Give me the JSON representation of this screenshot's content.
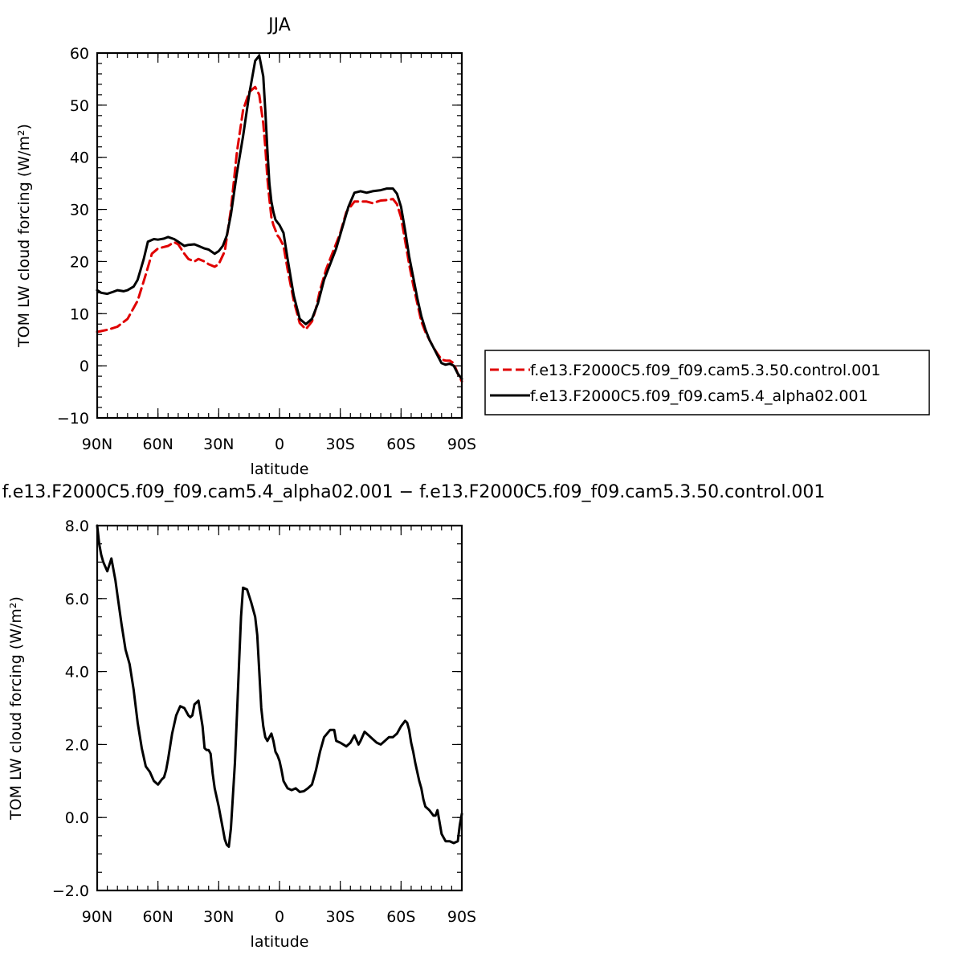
{
  "chart_data": [
    {
      "type": "line",
      "title": "JJA",
      "xlabel": "latitude",
      "ylabel": "TOM LW cloud forcing (W/m²)",
      "xlim": [
        90,
        -90
      ],
      "ylim": [
        -10,
        60
      ],
      "x_tick_values": [
        90,
        60,
        30,
        0,
        -30,
        -60,
        -90
      ],
      "x_tick_labels": [
        "90N",
        "60N",
        "30N",
        "0",
        "30S",
        "60S",
        "90S"
      ],
      "y_tick_values": [
        -10,
        0,
        10,
        20,
        30,
        40,
        50,
        60
      ],
      "y_tick_labels": [
        "−10",
        "0",
        "10",
        "20",
        "30",
        "40",
        "50",
        "60"
      ],
      "legend_position": "right",
      "series": [
        {
          "name": "f.e13.F2000C5.f09_f09.cam5.3.50.control.001",
          "color": "#e00000",
          "dash": "dashed",
          "x": [
            90,
            85,
            80,
            75,
            70,
            66,
            63,
            60,
            55,
            52,
            50,
            47,
            45,
            42,
            40,
            37,
            35,
            32,
            30,
            27,
            24,
            21,
            18,
            15,
            12,
            10,
            8,
            7,
            6,
            5,
            4,
            3,
            2,
            1,
            0,
            -2,
            -4,
            -7,
            -10,
            -13,
            -16,
            -18,
            -20,
            -23,
            -26,
            -30,
            -33,
            -37,
            -40,
            -43,
            -46,
            -50,
            -53,
            -56,
            -58,
            -60,
            -62,
            -64,
            -66,
            -68,
            -70,
            -72,
            -74,
            -76,
            -78,
            -80,
            -82,
            -84,
            -86,
            -88,
            -90
          ],
          "values": [
            6.5,
            6.9,
            7.5,
            9.0,
            12.5,
            17.5,
            21.5,
            22.5,
            23.0,
            23.7,
            23.3,
            21.5,
            20.5,
            20.0,
            20.5,
            20.0,
            19.5,
            19.0,
            19.5,
            22.0,
            30.0,
            41.0,
            49.0,
            52.5,
            53.5,
            52.0,
            46.5,
            42.0,
            36.0,
            32.0,
            28.5,
            27.0,
            26.0,
            25.0,
            24.5,
            23.0,
            18.5,
            12.5,
            8.2,
            7.0,
            8.5,
            11.0,
            14.5,
            18.5,
            21.5,
            25.5,
            29.5,
            31.5,
            31.5,
            31.5,
            31.2,
            31.7,
            31.8,
            32.0,
            31.0,
            28.5,
            24.0,
            19.5,
            15.5,
            12.0,
            8.5,
            6.5,
            5.0,
            3.5,
            2.3,
            1.2,
            1.0,
            1.0,
            0.5,
            -1.5,
            -3.0
          ]
        },
        {
          "name": "f.e13.F2000C5.f09_f09.cam5.4_alpha02.001",
          "color": "#000000",
          "dash": "solid",
          "x": [
            90,
            88,
            85,
            82,
            80,
            77,
            75,
            72,
            70,
            67,
            65,
            62,
            60,
            57,
            55,
            52,
            50,
            47,
            45,
            42,
            40,
            37,
            35,
            32,
            30,
            28,
            26,
            24,
            21,
            18,
            15,
            12,
            10,
            8,
            7,
            6,
            5,
            4,
            3,
            2,
            1,
            0,
            -2,
            -4,
            -7,
            -10,
            -13,
            -16,
            -19,
            -22,
            -25,
            -28,
            -31,
            -34,
            -37,
            -40,
            -43,
            -46,
            -50,
            -53,
            -56,
            -58,
            -60,
            -62,
            -64,
            -66,
            -68,
            -70,
            -72,
            -74,
            -76,
            -78,
            -80,
            -82,
            -84,
            -86,
            -88,
            -90
          ],
          "values": [
            14.5,
            14.0,
            13.8,
            14.2,
            14.5,
            14.3,
            14.5,
            15.2,
            16.5,
            20.5,
            23.8,
            24.3,
            24.2,
            24.4,
            24.7,
            24.3,
            23.8,
            23.0,
            23.2,
            23.3,
            23.0,
            22.5,
            22.3,
            21.5,
            22.0,
            23.0,
            25.0,
            29.0,
            37.0,
            44.0,
            52.0,
            58.5,
            59.5,
            55.5,
            49.0,
            41.5,
            35.0,
            31.5,
            29.5,
            28.0,
            27.5,
            27.0,
            25.5,
            20.5,
            13.5,
            9.0,
            8.0,
            9.0,
            12.0,
            16.5,
            19.5,
            22.5,
            26.5,
            30.5,
            33.2,
            33.5,
            33.2,
            33.5,
            33.7,
            34.0,
            34.0,
            33.0,
            30.5,
            26.0,
            21.0,
            17.0,
            13.0,
            9.5,
            7.0,
            5.0,
            3.5,
            2.0,
            0.5,
            0.2,
            0.4,
            0.0,
            -1.5,
            -2.5
          ]
        }
      ]
    },
    {
      "type": "line",
      "title": "f.e13.F2000C5.f09_f09.cam5.4_alpha02.001 − f.e13.F2000C5.f09_f09.cam5.3.50.control.001",
      "xlabel": "latitude",
      "ylabel": "TOM LW cloud forcing (W/m²)",
      "xlim": [
        90,
        -90
      ],
      "ylim": [
        -2.0,
        8.0
      ],
      "x_tick_values": [
        90,
        60,
        30,
        0,
        -30,
        -60,
        -90
      ],
      "x_tick_labels": [
        "90N",
        "60N",
        "30N",
        "0",
        "30S",
        "60S",
        "90S"
      ],
      "y_tick_values": [
        -2,
        0,
        2,
        4,
        6,
        8
      ],
      "y_tick_labels": [
        "−2.0",
        "0.0",
        "2.0",
        "4.0",
        "6.0",
        "8.0"
      ],
      "series": [
        {
          "color": "#000000",
          "dash": "solid",
          "x": [
            90,
            89,
            88,
            87,
            85,
            83,
            81,
            80,
            78,
            76,
            74,
            72,
            70,
            68,
            66,
            64,
            62,
            60,
            58,
            57,
            56,
            55,
            53,
            51,
            49,
            47,
            46,
            45,
            44,
            43,
            42,
            40,
            38,
            37,
            36,
            35,
            34,
            33,
            32,
            30,
            28,
            27,
            26,
            25,
            24,
            23,
            22,
            21,
            20,
            19,
            18,
            16,
            14,
            12,
            11,
            10,
            9,
            8,
            7,
            6,
            5,
            4,
            3,
            2,
            1,
            0,
            -1,
            -2,
            -4,
            -6,
            -8,
            -10,
            -12,
            -14,
            -16,
            -18,
            -20,
            -22,
            -25,
            -27,
            -28,
            -30,
            -33,
            -35,
            -37,
            -39,
            -40,
            -42,
            -44,
            -46,
            -48,
            -50,
            -52,
            -54,
            -56,
            -58,
            -60,
            -62,
            -63,
            -64,
            -65,
            -66,
            -67,
            -68,
            -69,
            -70,
            -71,
            -72,
            -74,
            -76,
            -77,
            -78,
            -80,
            -82,
            -84,
            -86,
            -88,
            -89,
            -90
          ],
          "values": [
            8.0,
            7.5,
            7.2,
            7.0,
            6.75,
            7.1,
            6.5,
            6.1,
            5.3,
            4.6,
            4.2,
            3.5,
            2.6,
            1.9,
            1.4,
            1.25,
            1.0,
            0.9,
            1.05,
            1.1,
            1.3,
            1.6,
            2.3,
            2.8,
            3.05,
            3.0,
            2.9,
            2.8,
            2.75,
            2.8,
            3.1,
            3.2,
            2.5,
            1.9,
            1.85,
            1.85,
            1.75,
            1.2,
            0.8,
            0.3,
            -0.3,
            -0.6,
            -0.75,
            -0.8,
            -0.3,
            0.6,
            1.5,
            2.8,
            4.2,
            5.5,
            6.3,
            6.25,
            5.9,
            5.5,
            5.0,
            4.0,
            3.0,
            2.5,
            2.2,
            2.1,
            2.2,
            2.3,
            2.1,
            1.8,
            1.7,
            1.55,
            1.3,
            1.0,
            0.8,
            0.75,
            0.8,
            0.7,
            0.72,
            0.8,
            0.9,
            1.3,
            1.8,
            2.2,
            2.4,
            2.4,
            2.1,
            2.05,
            1.95,
            2.05,
            2.25,
            2.0,
            2.1,
            2.35,
            2.25,
            2.15,
            2.05,
            2.0,
            2.1,
            2.2,
            2.2,
            2.3,
            2.5,
            2.65,
            2.6,
            2.4,
            2.05,
            1.8,
            1.5,
            1.25,
            1.0,
            0.8,
            0.5,
            0.3,
            0.2,
            0.05,
            0.05,
            0.2,
            -0.45,
            -0.65,
            -0.65,
            -0.7,
            -0.65,
            -0.2,
            0.1
          ]
        }
      ]
    }
  ]
}
